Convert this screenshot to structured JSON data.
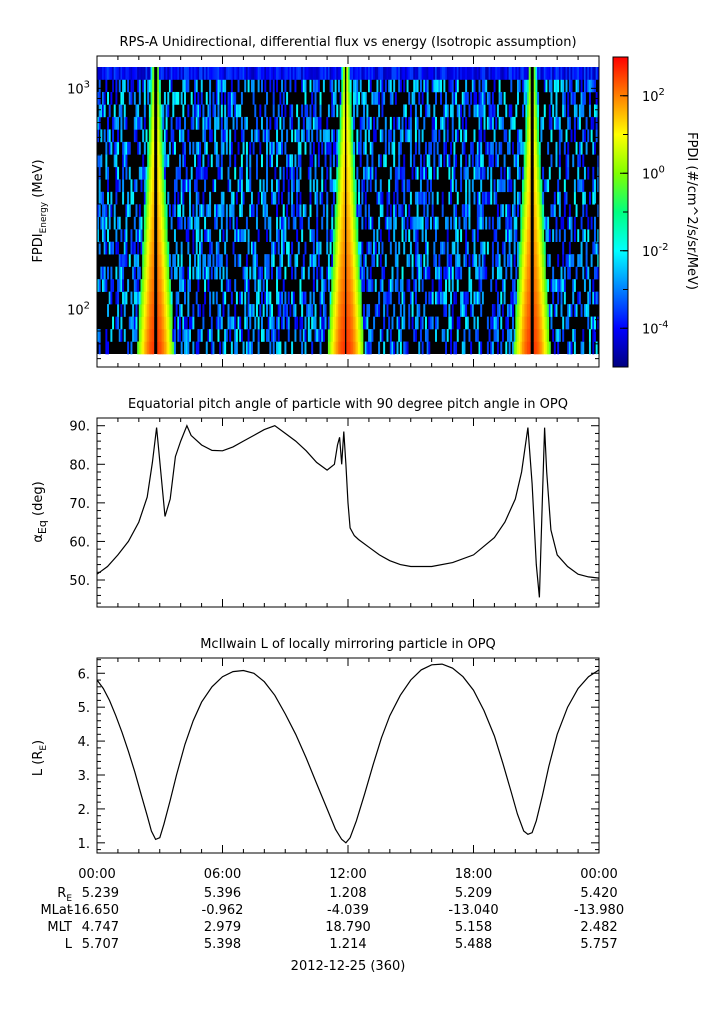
{
  "chart_data": [
    {
      "type": "heatmap",
      "title": "RPS-A Unidirectional, differential flux vs energy (Isotropic assumption)",
      "ylabel_main": "FPDI",
      "ylabel_sub": "Energy",
      "ylabel_unit": "(MeV)",
      "y_scale": "log",
      "ylim": [
        55,
        1400
      ],
      "y_ticks": [
        {
          "value": 100,
          "base": "10",
          "exp": "2"
        },
        {
          "value": 1000,
          "base": "10",
          "exp": "3"
        }
      ],
      "energy_bins": 23,
      "time_bins": 300,
      "xlim_hours": [
        0,
        24
      ],
      "bright_bands_hours": [
        2.8,
        11.9,
        20.8
      ],
      "colorbar": {
        "label": "FPDI (#/cm^2/s/sr/MeV)",
        "scale": "log",
        "range_log10": [
          -5,
          3
        ],
        "ticks": [
          {
            "value": -4,
            "base": "10",
            "exp": "-4"
          },
          {
            "value": -2,
            "base": "10",
            "exp": "-2"
          },
          {
            "value": 0,
            "base": "10",
            "exp": "0"
          },
          {
            "value": 2,
            "base": "10",
            "exp": "2"
          }
        ],
        "colors": [
          "#00007f",
          "#0000ff",
          "#0080ff",
          "#00ffff",
          "#00ff80",
          "#80ff00",
          "#ffff00",
          "#ff8000",
          "#ff0000"
        ]
      },
      "background_color": "#000000"
    },
    {
      "type": "line",
      "title": "Equatorial pitch angle of particle with 90 degree pitch angle in OPQ",
      "ylabel_main": "α",
      "ylabel_sub": "Eq",
      "ylabel_unit": "(deg)",
      "ylim": [
        43,
        92
      ],
      "y_ticks": [
        50,
        60,
        70,
        80,
        90
      ],
      "y_tick_labels": [
        "50.",
        "60.",
        "70.",
        "80.",
        "90."
      ],
      "xlim_hours": [
        0,
        24
      ],
      "series": [
        {
          "x": [
            0.0,
            0.5,
            1.0,
            1.5,
            2.0,
            2.4,
            2.65,
            2.85,
            3.05,
            3.25,
            3.5,
            3.75,
            4.0,
            4.3,
            4.5,
            5.0,
            5.5,
            6.0,
            6.5,
            7.0,
            7.5,
            8.0,
            8.5,
            9.0,
            9.5,
            10.0,
            10.5,
            11.0,
            11.35,
            11.5,
            11.6,
            11.7,
            11.8,
            11.9,
            12.0,
            12.1,
            12.3,
            12.5,
            13.0,
            13.5,
            14.0,
            14.5,
            15.0,
            16.0,
            17.0,
            18.0,
            19.0,
            19.5,
            20.0,
            20.3,
            20.6,
            20.8,
            21.0,
            21.15,
            21.3,
            21.4,
            21.5,
            21.7,
            22.0,
            22.5,
            23.0,
            23.5,
            24.0
          ],
          "y": [
            51.5,
            53.5,
            56.5,
            60.0,
            65.0,
            71.5,
            80.5,
            89.5,
            78.0,
            66.5,
            71.0,
            82.0,
            86.0,
            90.0,
            87.5,
            85.0,
            83.6,
            83.5,
            84.5,
            86.0,
            87.5,
            89.0,
            90.0,
            88.0,
            86.0,
            83.5,
            80.5,
            78.5,
            80.0,
            85.0,
            87.0,
            80.0,
            88.5,
            80.0,
            70.0,
            63.5,
            61.5,
            60.5,
            58.5,
            56.5,
            55.0,
            54.0,
            53.5,
            53.5,
            54.5,
            56.5,
            61.0,
            65.0,
            71.0,
            78.0,
            89.5,
            75.0,
            54.0,
            45.5,
            72.0,
            89.5,
            78.0,
            63.0,
            56.5,
            53.5,
            51.5,
            50.8,
            50.5
          ]
        }
      ]
    },
    {
      "type": "line",
      "title": "McIlwain L of locally mirroring particle in OPQ",
      "ylabel_main": "L (R",
      "ylabel_sub": "E",
      "ylabel_unit": ")",
      "ylim": [
        0.7,
        6.45
      ],
      "y_ticks": [
        1,
        2,
        3,
        4,
        5,
        6
      ],
      "y_tick_labels": [
        "1.",
        "2.",
        "3.",
        "4.",
        "5.",
        "6."
      ],
      "xlim_hours": [
        0,
        24
      ],
      "series": [
        {
          "x": [
            0.0,
            0.3,
            0.6,
            0.9,
            1.2,
            1.5,
            1.8,
            2.1,
            2.4,
            2.6,
            2.8,
            3.0,
            3.2,
            3.5,
            3.8,
            4.2,
            4.6,
            5.0,
            5.5,
            6.0,
            6.5,
            7.0,
            7.5,
            8.0,
            8.5,
            9.0,
            9.5,
            10.0,
            10.5,
            11.0,
            11.4,
            11.7,
            11.9,
            12.1,
            12.4,
            12.8,
            13.2,
            13.6,
            14.0,
            14.5,
            15.0,
            15.5,
            16.0,
            16.5,
            17.0,
            17.5,
            18.0,
            18.5,
            19.0,
            19.4,
            19.8,
            20.1,
            20.4,
            20.6,
            20.8,
            21.0,
            21.3,
            21.6,
            22.0,
            22.5,
            23.0,
            23.5,
            24.0
          ],
          "y": [
            5.8,
            5.55,
            5.2,
            4.75,
            4.25,
            3.7,
            3.1,
            2.45,
            1.8,
            1.35,
            1.1,
            1.15,
            1.55,
            2.25,
            3.0,
            3.9,
            4.6,
            5.15,
            5.6,
            5.9,
            6.05,
            6.08,
            6.0,
            5.75,
            5.35,
            4.8,
            4.2,
            3.5,
            2.75,
            2.0,
            1.4,
            1.1,
            1.0,
            1.15,
            1.65,
            2.45,
            3.3,
            4.1,
            4.75,
            5.35,
            5.8,
            6.1,
            6.25,
            6.27,
            6.15,
            5.9,
            5.5,
            4.9,
            4.15,
            3.35,
            2.5,
            1.85,
            1.35,
            1.25,
            1.3,
            1.65,
            2.4,
            3.25,
            4.2,
            5.0,
            5.55,
            5.9,
            6.1
          ]
        }
      ]
    }
  ],
  "x_axis": {
    "ticks_hours": [
      0,
      6,
      12,
      18,
      24
    ],
    "tick_labels": [
      "00:00",
      "06:00",
      "12:00",
      "18:00",
      "00:00"
    ],
    "minor_step_hours": 1,
    "date_label": "2012-12-25 (360)"
  },
  "ephemeris": {
    "rows": [
      {
        "label": "R",
        "label_sub": "E",
        "values": [
          "5.239",
          "5.396",
          "1.208",
          "5.209",
          "5.420"
        ]
      },
      {
        "label": "MLat",
        "label_sub": "",
        "values": [
          "-16.650",
          "-0.962",
          "-4.039",
          "-13.040",
          "-13.980"
        ]
      },
      {
        "label": "MLT",
        "label_sub": "",
        "values": [
          "4.747",
          "2.979",
          "18.790",
          "5.158",
          "2.482"
        ]
      },
      {
        "label": "L",
        "label_sub": "",
        "values": [
          "5.707",
          "5.398",
          "1.214",
          "5.488",
          "5.757"
        ]
      }
    ]
  }
}
